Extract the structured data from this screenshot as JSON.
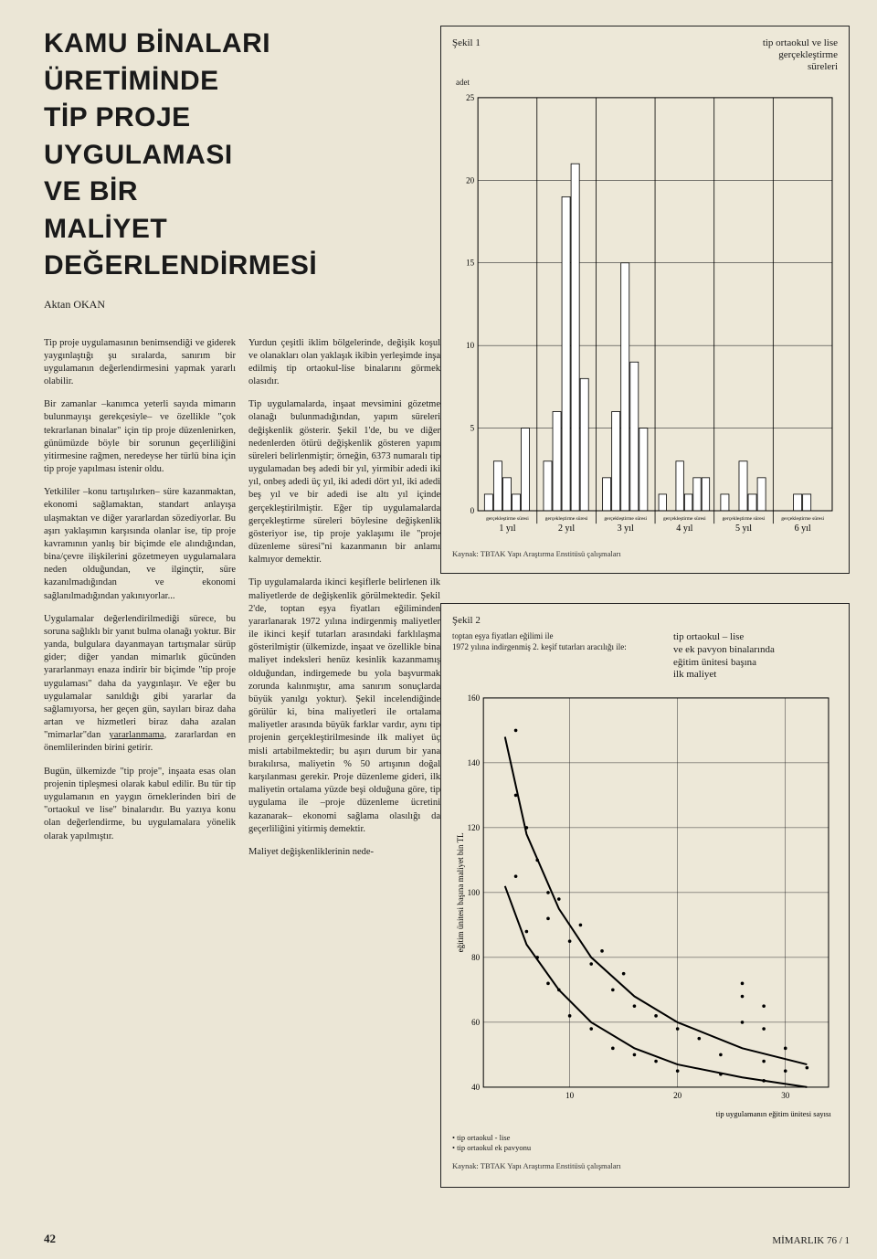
{
  "title_lines": [
    "KAMU BİNALARI",
    "ÜRETİMİNDE",
    "TİP PROJE",
    "UYGULAMASI",
    "VE BİR",
    "MALİYET",
    "DEĞERLENDİRMESİ"
  ],
  "author": "Aktan OKAN",
  "col1": {
    "p1": "Tip proje uygulamasının benimsendiği ve giderek yaygınlaştığı şu sıralarda, sanırım bir uygulamanın değerlendirmesini yapmak yararlı olabilir.",
    "p2": "Bir zamanlar –kanımca yeterli sayıda mimarın bulunmayışı gerekçesiyle– ve özellikle \"çok tekrarlanan binalar\" için tip proje düzenlenirken, günümüzde böyle bir sorunun geçerliliğini yitirmesine rağmen, neredeyse her türlü bina için tip proje yapılması istenir oldu.",
    "p3": "Yetkililer –konu tartışılırken– süre kazanmaktan, ekonomi sağlamaktan, standart anlayışa ulaşmaktan ve diğer yararlardan sözediyorlar. Bu aşırı yaklaşımın karşısında olanlar ise, tip proje kavramının yanlış bir biçimde ele alındığından, bina/çevre ilişkilerini gözetmeyen uygulamalara neden olduğundan, ve ilginçtir, süre kazanılmadığından ve ekonomi sağlanılmadığından yakınıyorlar...",
    "p4a": "Uygulamalar değerlendirilmediği sürece, bu soruna sağlıklı bir yanıt bulma olanağı yoktur. Bir yanda, bulgulara dayanmayan tartışmalar sürüp gider; diğer yandan mimarlık gücünden yararlanmayı enaza indirir bir biçimde \"tip proje uygulaması\" daha da yaygınlaşır. Ve eğer bu uygulamalar sanıldığı gibi yararlar da sağlamıyorsa, her geçen gün, sayıları biraz daha artan ve hizmetleri biraz daha azalan \"mimarlar\"dan ",
    "p4u": "yararlanmama",
    "p4b": ", zararlardan en önemlilerinden birini getirir.",
    "p5": "Bugün, ülkemizde \"tip proje\", inşaata esas olan projenin tipleşmesi olarak kabul edilir. Bu tür tip uygulamanın en yaygın örneklerinden biri de \"ortaokul ve lise\" binalarıdır. Bu yazıya konu olan değerlendirme, bu uygulamalara yönelik olarak yapılmıştır."
  },
  "col2": {
    "p1": "Yurdun çeşitli iklim bölgelerinde, değişik koşul ve olanakları olan yaklaşık ikibin yerleşimde inşa edilmiş tip ortaokul-lise binalarını görmek olasıdır.",
    "p2": "Tip uygulamalarda, inşaat mevsimini gözetme olanağı bulunmadığından, yapım süreleri değişkenlik gösterir. Şekil 1'de, bu ve diğer nedenlerden ötürü değişkenlik gösteren yapım süreleri belirlenmiştir; örneğin, 6373 numaralı tip uygulamadan beş adedi bir yıl, yirmibir adedi iki yıl, onbeş adedi üç yıl, iki adedi dört yıl, iki adedi beş yıl ve bir adedi ise altı yıl içinde gerçekleştirilmiştir. Eğer tip uygulamalarda gerçekleştirme süreleri böylesine değişkenlik gösteriyor ise, tip proje yaklaşımı ile \"proje düzenleme süresi\"ni kazanmanın bir anlamı kalmıyor demektir.",
    "p3": "Tip uygulamalarda ikinci keşiflerle belirlenen ilk maliyetlerde de değişkenlik görülmektedir. Şekil 2'de, toptan eşya fiyatları eğiliminden yararlanarak 1972 yılına indirgenmiş maliyetler ile ikinci keşif tutarları arasındaki farklılaşma gösterilmiştir (ülkemizde, inşaat ve özellikle bina maliyet indeksleri henüz kesinlik kazanmamış olduğundan, indirgemede bu yola başvurmak zorunda kalınmıştır, ama sanırım sonuçlarda büyük yanılgı yoktur). Şekil incelendiğinde görülür ki, bina maliyetleri ile ortalama maliyetler arasında büyük farklar vardır, aynı tip projenin gerçekleştirilmesinde ilk maliyet üç misli artabilmektedir; bu aşırı durum bir yana bırakılırsa, maliyetin % 50 artışının doğal karşılanması gerekir. Proje düzenleme gideri, ilk maliyetin ortalama yüzde beşi olduğuna göre, tip uygulama ile –proje düzenleme ücretini kazanarak– ekonomi sağlama olasılığı da geçerliliğini yitirmiş demektir.",
    "p4": "Maliyet değişkenliklerinin nede-"
  },
  "fig1": {
    "label": "Şekil 1",
    "title_line1": "tip ortaokul ve lise",
    "title_line2": "gerçekleştirme",
    "title_line3": "süreleri",
    "ylabel": "adet",
    "ymax": 25,
    "yticks": [
      0,
      5,
      10,
      15,
      20,
      25
    ],
    "years": [
      "1 yıl",
      "2 yıl",
      "3 yıl",
      "4 yıl",
      "5 yıl",
      "6 yıl"
    ],
    "xlabel_small": "gerçekleştirme süresi",
    "groups": [
      {
        "vals": [
          1,
          3,
          2,
          1,
          5
        ]
      },
      {
        "vals": [
          3,
          6,
          19,
          21,
          8
        ]
      },
      {
        "vals": [
          2,
          6,
          15,
          9,
          5
        ]
      },
      {
        "vals": [
          1,
          0,
          3,
          1,
          2,
          2
        ]
      },
      {
        "vals": [
          1,
          0,
          3,
          1,
          2
        ]
      },
      {
        "vals": [
          1,
          1
        ]
      }
    ],
    "bar_color": "#ffffff",
    "bar_stroke": "#000000",
    "grid_color": "#333333",
    "source": "Kaynak: TBTAK Yapı Araştırma Enstitüsü çalışmaları"
  },
  "fig2": {
    "label": "Şekil 2",
    "sub_line1": "toptan eşya fiyatları eğilimi ile",
    "sub_line2": "1972 yılına indirgenmiş 2. keşif tutarları aracılığı ile:",
    "title_line1": "tip ortaokul – lise",
    "title_line2": "ve ek pavyon binalarında",
    "title_line3": "eğitim ünitesi başına",
    "title_line4": "ilk maliyet",
    "ylabel": "eğitim ünitesi başına maliyet  bin TL",
    "yticks": [
      40,
      60,
      80,
      100,
      120,
      140,
      160
    ],
    "xlabel": "tip uygulamanın eğitim ünitesi sayısı",
    "xticks": [
      10,
      20,
      30
    ],
    "legend1": "• tip ortaokul - lise",
    "legend2": "• tip ortaokul ek pavyonu",
    "curve1": [
      [
        4,
        148
      ],
      [
        6,
        118
      ],
      [
        9,
        95
      ],
      [
        12,
        80
      ],
      [
        16,
        68
      ],
      [
        20,
        60
      ],
      [
        26,
        52
      ],
      [
        32,
        47
      ]
    ],
    "curve2": [
      [
        4,
        102
      ],
      [
        6,
        84
      ],
      [
        9,
        70
      ],
      [
        12,
        60
      ],
      [
        16,
        52
      ],
      [
        20,
        47
      ],
      [
        26,
        43
      ],
      [
        32,
        40
      ]
    ],
    "scatter1": [
      [
        5,
        150
      ],
      [
        5,
        130
      ],
      [
        6,
        120
      ],
      [
        7,
        110
      ],
      [
        8,
        100
      ],
      [
        8,
        92
      ],
      [
        9,
        98
      ],
      [
        10,
        85
      ],
      [
        11,
        90
      ],
      [
        12,
        78
      ],
      [
        13,
        82
      ],
      [
        14,
        70
      ],
      [
        15,
        75
      ],
      [
        16,
        65
      ],
      [
        18,
        62
      ],
      [
        20,
        58
      ],
      [
        22,
        55
      ],
      [
        24,
        50
      ],
      [
        28,
        48
      ],
      [
        30,
        45
      ],
      [
        32,
        46
      ],
      [
        26,
        60
      ],
      [
        26,
        68
      ],
      [
        26,
        72
      ],
      [
        28,
        65
      ],
      [
        28,
        58
      ],
      [
        30,
        52
      ]
    ],
    "scatter2": [
      [
        5,
        105
      ],
      [
        6,
        88
      ],
      [
        7,
        80
      ],
      [
        8,
        72
      ],
      [
        9,
        70
      ],
      [
        10,
        62
      ],
      [
        12,
        58
      ],
      [
        14,
        52
      ],
      [
        16,
        50
      ],
      [
        18,
        48
      ],
      [
        20,
        45
      ],
      [
        24,
        44
      ],
      [
        28,
        42
      ]
    ],
    "line_color": "#000000",
    "point_color": "#000000",
    "grid_color": "#333333",
    "source": "Kaynak: TBTAK Yapı Araştırma Enstitüsü çalışmaları"
  },
  "page_num": "42",
  "footer": "MİMARLIK 76 / 1"
}
